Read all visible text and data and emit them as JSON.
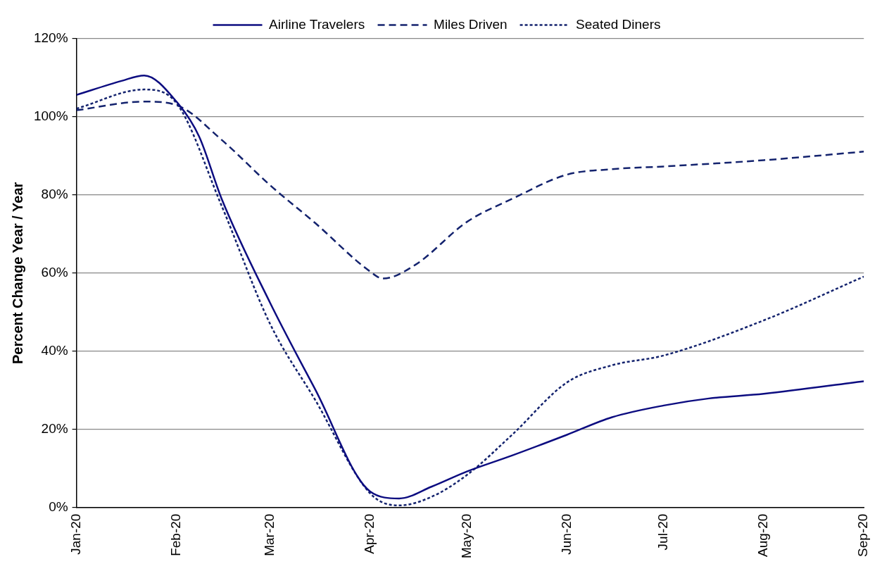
{
  "chart_data": {
    "type": "line",
    "ylabel": "Percent Change Year / Year",
    "xlim": [
      "2020-01-01",
      "2020-09-01"
    ],
    "xticks": [
      {
        "value": "2020-01-01",
        "label": "Jan-20"
      },
      {
        "value": "2020-02-01",
        "label": "Feb-20"
      },
      {
        "value": "2020-03-01",
        "label": "Mar-20"
      },
      {
        "value": "2020-04-01",
        "label": "Apr-20"
      },
      {
        "value": "2020-05-01",
        "label": "May-20"
      },
      {
        "value": "2020-06-01",
        "label": "Jun-20"
      },
      {
        "value": "2020-07-01",
        "label": "Jul-20"
      },
      {
        "value": "2020-08-01",
        "label": "Aug-20"
      },
      {
        "value": "2020-09-01",
        "label": "Sep-20"
      }
    ],
    "ylim": [
      0,
      120
    ],
    "yticks": [
      {
        "value": 0,
        "label": "0%"
      },
      {
        "value": 20,
        "label": "20%"
      },
      {
        "value": 40,
        "label": "40%"
      },
      {
        "value": 60,
        "label": "60%"
      },
      {
        "value": 80,
        "label": "80%"
      },
      {
        "value": 100,
        "label": "100%"
      },
      {
        "value": 120,
        "label": "120%"
      }
    ],
    "grid": "y",
    "legend": "top",
    "marker": "none",
    "series": [
      {
        "name": "Airline Travelers",
        "color": "#0c0c80",
        "line_style": "solid",
        "x": [
          "2020-01-01",
          "2020-01-15",
          "2020-01-22",
          "2020-02-01",
          "2020-02-08",
          "2020-02-15",
          "2020-03-01",
          "2020-03-15",
          "2020-04-01",
          "2020-04-10",
          "2020-04-20",
          "2020-05-01",
          "2020-05-15",
          "2020-06-01",
          "2020-06-15",
          "2020-07-01",
          "2020-07-15",
          "2020-08-01",
          "2020-09-01"
        ],
        "values": [
          105.6,
          109.2,
          110.6,
          103.9,
          95,
          79,
          52.4,
          30.2,
          4.1,
          2.3,
          5.3,
          9.2,
          13.3,
          18.6,
          23.1,
          26.1,
          27.9,
          29.1,
          32.3
        ]
      },
      {
        "name": "Miles Driven",
        "color": "#14236e",
        "line_style": "dashed",
        "x": [
          "2020-01-01",
          "2020-01-22",
          "2020-02-01",
          "2020-02-15",
          "2020-03-01",
          "2020-03-15",
          "2020-04-01",
          "2020-04-05",
          "2020-04-15",
          "2020-05-01",
          "2020-05-15",
          "2020-06-01",
          "2020-06-15",
          "2020-07-01",
          "2020-08-01",
          "2020-09-01"
        ],
        "values": [
          101.7,
          103.9,
          103,
          94.1,
          82.5,
          72.8,
          60.4,
          58.6,
          62.1,
          73.1,
          79,
          85.2,
          86.6,
          87.3,
          88.9,
          91.1
        ]
      },
      {
        "name": "Seated Diners",
        "color": "#14236e",
        "line_style": "dotted",
        "x": [
          "2020-01-01",
          "2020-01-22",
          "2020-02-01",
          "2020-02-15",
          "2020-03-01",
          "2020-03-15",
          "2020-04-01",
          "2020-04-10",
          "2020-04-20",
          "2020-05-01",
          "2020-05-15",
          "2020-06-01",
          "2020-06-15",
          "2020-07-01",
          "2020-08-01",
          "2020-09-01"
        ],
        "values": [
          102.1,
          107,
          103.5,
          77.2,
          47,
          27.5,
          3.6,
          0.5,
          2.7,
          8.3,
          18.6,
          32,
          36.4,
          38.9,
          47.9,
          59.1
        ]
      }
    ]
  }
}
